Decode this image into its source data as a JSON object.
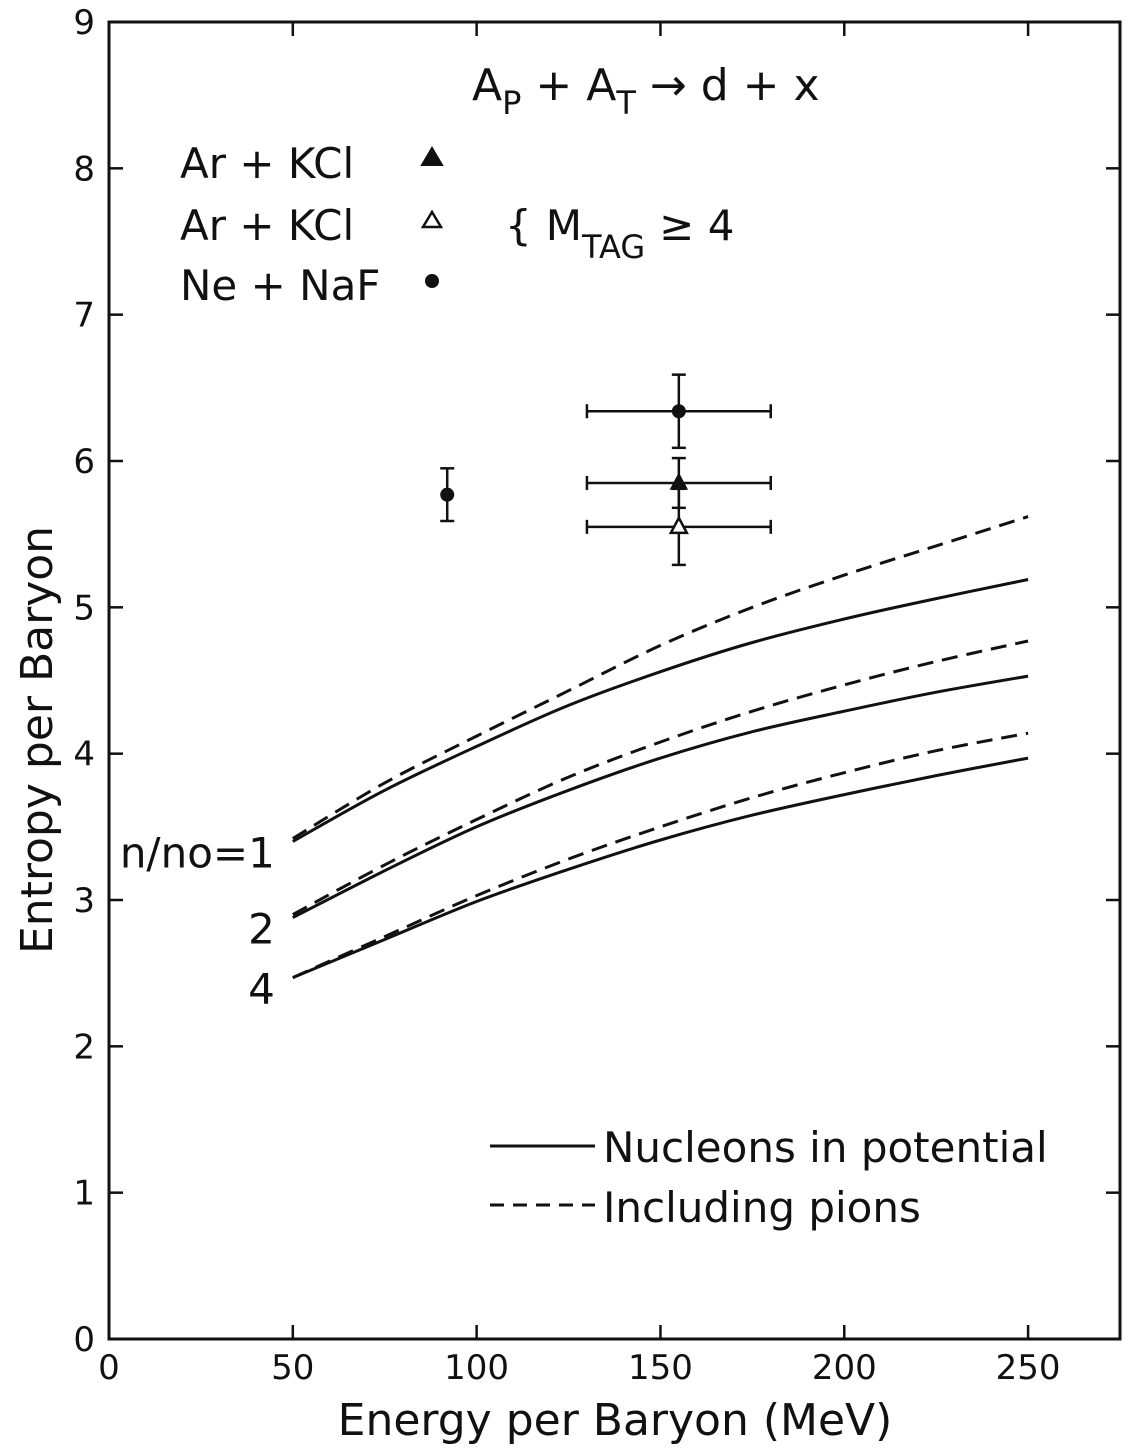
{
  "chart_data": {
    "type": "line",
    "title": "",
    "reaction": {
      "projectile": "A",
      "projectile_sub": "P",
      "target": "A",
      "target_sub": "T",
      "products": "d + x"
    },
    "xlabel": "Energy per Baryon  (MeV)",
    "ylabel": "Entropy per Baryon",
    "xlim": [
      0,
      275
    ],
    "ylim": [
      0,
      9
    ],
    "x_ticks": [
      0,
      50,
      100,
      150,
      200,
      250
    ],
    "x_tick_labels": [
      "0",
      "50",
      "100",
      "150",
      "200",
      "250"
    ],
    "y_ticks": [
      0,
      1,
      2,
      3,
      4,
      5,
      6,
      7,
      8,
      9
    ],
    "y_tick_labels": [
      "0",
      "1",
      "2",
      "3",
      "4",
      "5",
      "6",
      "7",
      "8",
      "9"
    ],
    "grid": false,
    "curve_x": [
      50,
      75,
      100,
      125,
      150,
      175,
      200,
      225,
      250
    ],
    "series": [
      {
        "group": "1",
        "style": "solid",
        "values": [
          3.4,
          3.75,
          4.05,
          4.33,
          4.56,
          4.76,
          4.92,
          5.06,
          5.19
        ]
      },
      {
        "group": "1",
        "style": "dashed",
        "values": [
          3.42,
          3.8,
          4.12,
          4.43,
          4.74,
          5.0,
          5.22,
          5.42,
          5.62
        ]
      },
      {
        "group": "2",
        "style": "solid",
        "values": [
          2.88,
          3.2,
          3.5,
          3.75,
          3.97,
          4.15,
          4.29,
          4.42,
          4.53
        ]
      },
      {
        "group": "2",
        "style": "dashed",
        "values": [
          2.9,
          3.24,
          3.55,
          3.84,
          4.08,
          4.29,
          4.47,
          4.63,
          4.77
        ]
      },
      {
        "group": "4",
        "style": "solid",
        "values": [
          2.47,
          2.73,
          2.99,
          3.21,
          3.41,
          3.58,
          3.72,
          3.85,
          3.97
        ]
      },
      {
        "group": "4",
        "style": "dashed",
        "values": [
          2.47,
          2.75,
          3.03,
          3.28,
          3.5,
          3.7,
          3.87,
          4.02,
          4.14
        ]
      }
    ],
    "curve_labels": [
      {
        "group": "1",
        "text": "n/no=1"
      },
      {
        "group": "2",
        "text": "2"
      },
      {
        "group": "4",
        "text": "4"
      }
    ],
    "line_legend": [
      {
        "style": "solid",
        "label": "Nucleons in potential"
      },
      {
        "style": "dashed",
        "label": "Including pions"
      }
    ],
    "marker_legend": [
      {
        "label": "Ar + KCl",
        "marker": "filled-triangle"
      },
      {
        "label": "Ar + KCl",
        "marker": "open-triangle"
      },
      {
        "label": "Ne + NaF",
        "marker": "filled-circle"
      }
    ],
    "mtag_annotation": {
      "brace": "{",
      "text": "M",
      "sub": "TAG",
      "condition": "≥ 4"
    },
    "data_points": [
      {
        "marker": "filled-circle",
        "x": 92,
        "y": 5.77,
        "y_err": 0.18,
        "x_err": 0
      },
      {
        "marker": "filled-circle",
        "x": 155,
        "y": 6.34,
        "y_err": 0.25,
        "x_err": 25
      },
      {
        "marker": "filled-triangle",
        "x": 155,
        "y": 5.85,
        "y_err": 0.17,
        "x_err": 25
      },
      {
        "marker": "open-triangle",
        "x": 155,
        "y": 5.55,
        "y_err": 0.26,
        "x_err": 25
      }
    ],
    "colors": {
      "ink": "#111111",
      "background": "#ffffff"
    }
  }
}
